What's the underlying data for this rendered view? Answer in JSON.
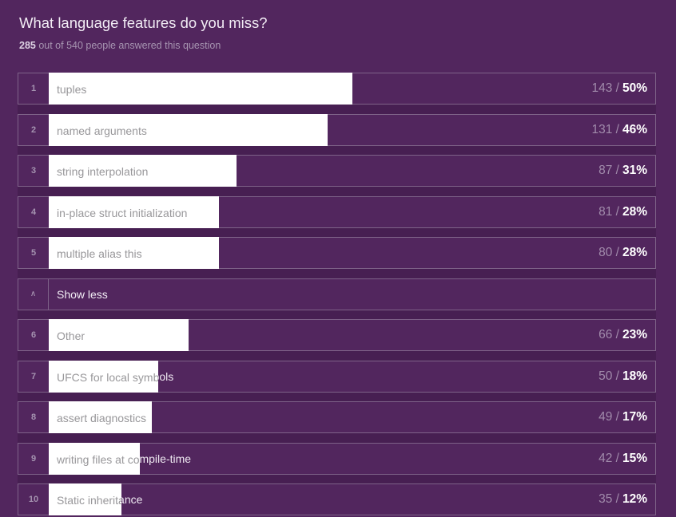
{
  "header": {
    "title": "What language features do you miss?",
    "answered_bold": "285",
    "answered_text": " out of 540 people answered this question"
  },
  "poll": {
    "separator": "/",
    "collapse_icon": "chevron-up",
    "collapse_icon_glyph": "∧",
    "rows": [
      {
        "type": "option",
        "rank": "1",
        "label": "tuples",
        "votes": "143",
        "pct": 50,
        "pct_label": "50%"
      },
      {
        "type": "option",
        "rank": "2",
        "label": "named arguments",
        "votes": "131",
        "pct": 46,
        "pct_label": "46%"
      },
      {
        "type": "option",
        "rank": "3",
        "label": "string interpolation",
        "votes": "87",
        "pct": 31,
        "pct_label": "31%"
      },
      {
        "type": "option",
        "rank": "4",
        "label": "in-place struct initialization",
        "votes": "81",
        "pct": 28,
        "pct_label": "28%"
      },
      {
        "type": "option",
        "rank": "5",
        "label": "multiple alias this",
        "votes": "80",
        "pct": 28,
        "pct_label": "28%"
      },
      {
        "type": "collapse",
        "label": "Show less"
      },
      {
        "type": "option",
        "rank": "6",
        "label": "Other",
        "votes": "66",
        "pct": 23,
        "pct_label": "23%"
      },
      {
        "type": "option",
        "rank": "7",
        "label": "UFCS for local symbols",
        "votes": "50",
        "pct": 18,
        "pct_label": "18%"
      },
      {
        "type": "option",
        "rank": "8",
        "label": "assert diagnostics",
        "votes": "49",
        "pct": 17,
        "pct_label": "17%"
      },
      {
        "type": "option",
        "rank": "9",
        "label": "writing files at compile-time",
        "votes": "42",
        "pct": 15,
        "pct_label": "15%"
      },
      {
        "type": "option",
        "rank": "10",
        "label": "Static inheritance",
        "votes": "35",
        "pct": 12,
        "pct_label": "12%"
      }
    ]
  },
  "colors": {
    "page_bg": "#52265e",
    "list_slot_bg": "#471f52",
    "row_border": "#7e6288",
    "bar_fill": "#ffffff",
    "bar_label": "#98979a",
    "overflow_label": "#efe9f2",
    "votes_text": "#a18bab",
    "pct_text": "#ffffff"
  }
}
